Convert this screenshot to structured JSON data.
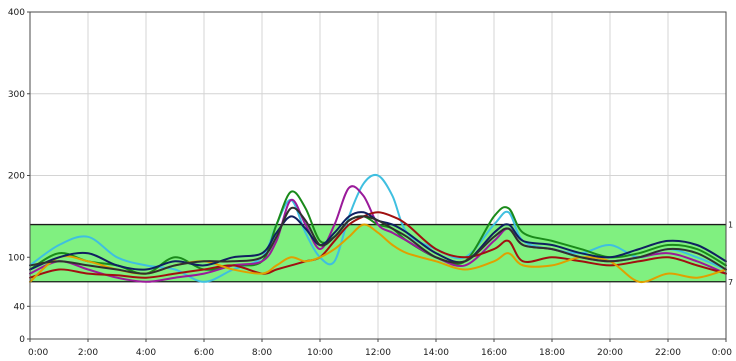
{
  "chart_data": {
    "type": "line",
    "title": "",
    "xlabel": "",
    "ylabel": "",
    "xlim": [
      0,
      24
    ],
    "ylim": [
      0,
      400
    ],
    "grid": true,
    "x_ticks": [
      {
        "value": 0,
        "label": "0:00"
      },
      {
        "value": 2,
        "label": "2:00"
      },
      {
        "value": 4,
        "label": "4:00"
      },
      {
        "value": 6,
        "label": "6:00"
      },
      {
        "value": 8,
        "label": "8:00"
      },
      {
        "value": 10,
        "label": "10:00"
      },
      {
        "value": 12,
        "label": "12:00"
      },
      {
        "value": 14,
        "label": "14:00"
      },
      {
        "value": 16,
        "label": "16:00"
      },
      {
        "value": 18,
        "label": "18:00"
      },
      {
        "value": 20,
        "label": "20:00"
      },
      {
        "value": 22,
        "label": "22:00"
      },
      {
        "value": 24,
        "label": "0:00"
      }
    ],
    "y_ticks": [
      {
        "value": 0,
        "label": "0"
      },
      {
        "value": 40,
        "label": "40"
      },
      {
        "value": 100,
        "label": "100"
      },
      {
        "value": 200,
        "label": "200"
      },
      {
        "value": 300,
        "label": "300"
      },
      {
        "value": 400,
        "label": "400"
      }
    ],
    "target_range": {
      "low": 70,
      "high": 140,
      "color": "#80f080",
      "low_label": "7",
      "high_label": "1"
    },
    "series": [
      {
        "color": "#3fbfe0",
        "x": [
          0,
          1,
          2,
          3,
          4,
          5,
          6,
          7,
          8,
          8.5,
          9,
          9.5,
          10,
          10.5,
          11,
          11.5,
          12,
          12.5,
          13,
          14,
          15,
          16,
          16.5,
          17,
          18,
          19,
          20,
          21,
          22,
          23,
          24
        ],
        "values": [
          90,
          115,
          125,
          100,
          90,
          85,
          70,
          85,
          100,
          140,
          170,
          130,
          100,
          95,
          150,
          190,
          200,
          175,
          130,
          110,
          100,
          140,
          155,
          120,
          110,
          105,
          115,
          100,
          110,
          100,
          85
        ]
      },
      {
        "color": "#1a8a1a",
        "x": [
          0,
          1,
          2,
          3,
          4,
          5,
          6,
          7,
          8,
          8.5,
          9,
          9.5,
          10,
          10.5,
          11,
          11.5,
          12,
          12.5,
          13,
          14,
          15,
          16,
          16.5,
          17,
          18,
          19,
          20,
          21,
          22,
          23,
          24
        ],
        "values": [
          85,
          105,
          95,
          90,
          80,
          100,
          85,
          90,
          95,
          140,
          180,
          160,
          120,
          125,
          145,
          150,
          140,
          135,
          120,
          100,
          95,
          150,
          160,
          130,
          120,
          110,
          100,
          105,
          115,
          110,
          90
        ]
      },
      {
        "color": "#9a1a9a",
        "x": [
          0,
          1,
          2,
          3,
          4,
          5,
          6,
          7,
          8,
          8.5,
          9,
          9.5,
          10,
          10.5,
          11,
          11.5,
          12,
          12.5,
          13,
          14,
          15,
          16,
          16.5,
          17,
          18,
          19,
          20,
          21,
          22,
          23,
          24
        ],
        "values": [
          80,
          95,
          85,
          75,
          70,
          75,
          80,
          90,
          95,
          120,
          170,
          140,
          110,
          140,
          185,
          175,
          140,
          130,
          120,
          100,
          90,
          120,
          135,
          115,
          110,
          100,
          95,
          100,
          105,
          95,
          80
        ]
      },
      {
        "color": "#a01010",
        "x": [
          0,
          1,
          2,
          3,
          4,
          5,
          6,
          7,
          8,
          8.5,
          9,
          9.5,
          10,
          10.5,
          11,
          11.5,
          12,
          12.5,
          13,
          14,
          15,
          16,
          16.5,
          17,
          18,
          19,
          20,
          21,
          22,
          23,
          24
        ],
        "values": [
          75,
          85,
          80,
          78,
          75,
          80,
          85,
          90,
          80,
          85,
          90,
          95,
          100,
          120,
          140,
          150,
          155,
          150,
          140,
          110,
          100,
          110,
          120,
          95,
          100,
          95,
          90,
          95,
          100,
          90,
          80
        ]
      },
      {
        "color": "#e0a000",
        "x": [
          0,
          1,
          2,
          3,
          4,
          5,
          6,
          7,
          8,
          8.5,
          9,
          9.5,
          10,
          10.5,
          11,
          11.5,
          12,
          12.5,
          13,
          14,
          15,
          16,
          16.5,
          17,
          18,
          19,
          20,
          21,
          22,
          23,
          24
        ],
        "values": [
          70,
          100,
          95,
          85,
          80,
          90,
          95,
          85,
          80,
          90,
          100,
          95,
          100,
          110,
          125,
          140,
          130,
          115,
          105,
          95,
          85,
          95,
          105,
          90,
          90,
          100,
          95,
          70,
          80,
          75,
          85
        ]
      },
      {
        "color": "#102060",
        "x": [
          0,
          1,
          2,
          3,
          4,
          5,
          6,
          7,
          8,
          8.5,
          9,
          9.5,
          10,
          10.5,
          11,
          11.5,
          12,
          12.5,
          13,
          14,
          15,
          16,
          16.5,
          17,
          18,
          19,
          20,
          21,
          22,
          23,
          24
        ],
        "values": [
          85,
          100,
          105,
          90,
          85,
          95,
          90,
          100,
          105,
          130,
          150,
          135,
          115,
          130,
          150,
          155,
          145,
          140,
          130,
          105,
          95,
          130,
          140,
          120,
          115,
          105,
          100,
          110,
          120,
          115,
          95
        ]
      },
      {
        "color": "#303030",
        "x": [
          0,
          1,
          2,
          3,
          4,
          5,
          6,
          7,
          8,
          8.5,
          9,
          9.5,
          10,
          10.5,
          11,
          11.5,
          12,
          12.5,
          13,
          14,
          15,
          16,
          16.5,
          17,
          18,
          19,
          20,
          21,
          22,
          23,
          24
        ],
        "values": [
          90,
          95,
          90,
          85,
          80,
          90,
          95,
          95,
          100,
          125,
          160,
          145,
          115,
          125,
          145,
          150,
          145,
          135,
          125,
          100,
          95,
          125,
          135,
          115,
          110,
          100,
          95,
          100,
          110,
          105,
          85
        ]
      }
    ]
  }
}
